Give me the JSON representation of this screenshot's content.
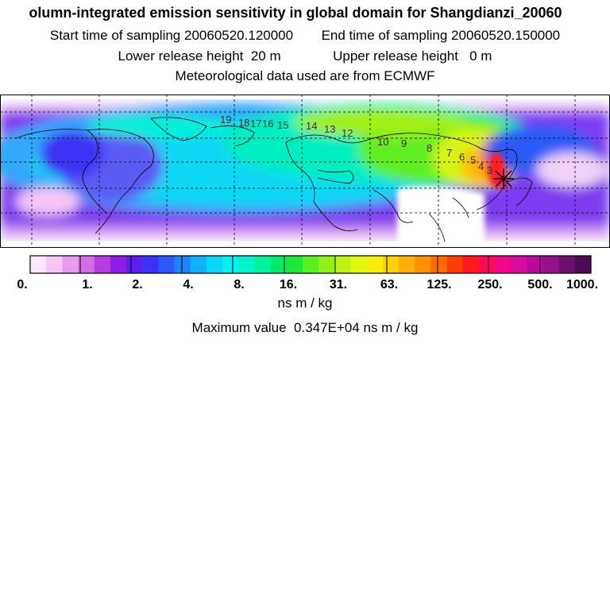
{
  "header": {
    "title": "olumn-integrated emission sensitivity in global domain for Shangdianzi_20060",
    "start_label": "Start time of sampling",
    "start_value": "20060520.120000",
    "end_label": "End time of sampling",
    "end_value": "20060520.150000",
    "lower_label": "Lower release height",
    "lower_value": "20 m",
    "upper_label": "Upper release height",
    "upper_value": "0 m",
    "met_text": "Meteorological data used are from ECMWF"
  },
  "map": {
    "trajectory_labels": [
      "19",
      "18",
      "17",
      "16",
      "15",
      "14",
      "13",
      "12",
      "10",
      "9",
      "8",
      "7",
      "6",
      "5",
      "4",
      "3"
    ],
    "station_marker": "star",
    "colors": {
      "land_outline": "#000000",
      "grid": "#000000",
      "low": "#ffffff",
      "mid": "#00e5e5",
      "high": "#ff0000"
    }
  },
  "colorbar": {
    "tick_labels": [
      "0.",
      "1.",
      "2.",
      "4.",
      "8.",
      "16.",
      "31.",
      "63.",
      "125.",
      "250.",
      "500.",
      "1000."
    ],
    "colors": [
      "#ffe8ff",
      "#f7c6f7",
      "#e89cf0",
      "#d36ee8",
      "#b43ce0",
      "#8c1ee8",
      "#5a1ef0",
      "#3c32f5",
      "#2a5af7",
      "#1a86fa",
      "#10b0fb",
      "#08d6fc",
      "#00f2f2",
      "#00f2c8",
      "#00f29a",
      "#00ec68",
      "#20e83a",
      "#5aee20",
      "#90f018",
      "#bef414",
      "#e2f610",
      "#f8ec0c",
      "#fcd008",
      "#feb006",
      "#ff9004",
      "#ff6a04",
      "#ff3e06",
      "#ff1a20",
      "#ff0a5a",
      "#f0088c",
      "#d80aa0",
      "#b80a9a",
      "#941088",
      "#6e1070",
      "#4a0c50"
    ],
    "units": "ns m / kg"
  },
  "footer": {
    "max_label": "Maximum value",
    "max_value": "0.347E+04 ns m / kg"
  }
}
